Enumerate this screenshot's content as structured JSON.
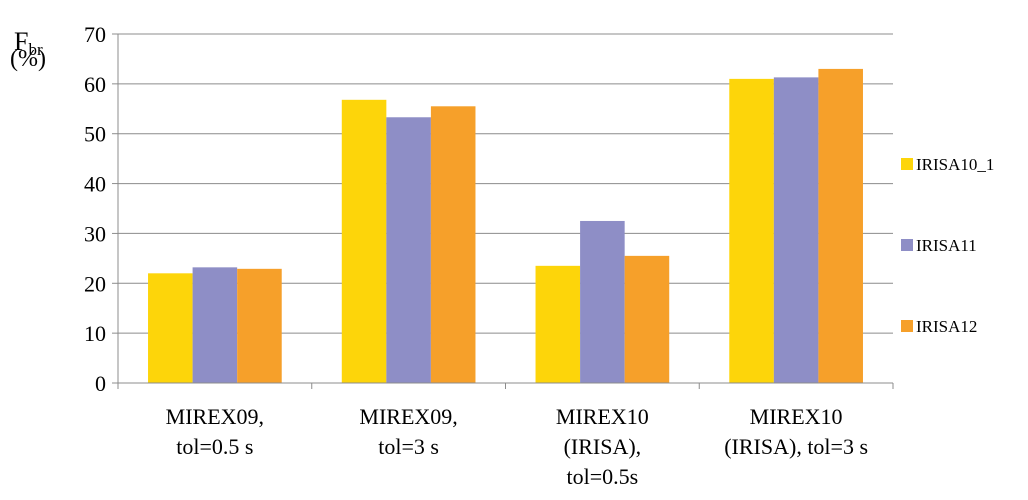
{
  "chart_data": {
    "type": "bar",
    "ylabel": "F",
    "ylabel_subscript": "br",
    "ylabel_unit": "(%)",
    "ylim": [
      0,
      70
    ],
    "yticks": [
      0,
      10,
      20,
      30,
      40,
      50,
      60,
      70
    ],
    "grid": true,
    "legend_position": "right",
    "categories": [
      [
        "MIREX09,",
        "tol=0.5 s"
      ],
      [
        "MIREX09,",
        "tol=3 s"
      ],
      [
        "MIREX10",
        "(IRISA),",
        "tol=0.5s"
      ],
      [
        "MIREX10",
        "(IRISA), tol=3 s"
      ]
    ],
    "series": [
      {
        "name": "IRISA10_1",
        "color": "#FDD50A",
        "values": [
          22.0,
          56.8,
          23.5,
          61.0
        ]
      },
      {
        "name": "IRISA11",
        "color": "#8E8EC6",
        "values": [
          23.2,
          53.3,
          32.5,
          61.3
        ]
      },
      {
        "name": "IRISA12",
        "color": "#F6A02A",
        "values": [
          22.9,
          55.5,
          25.5,
          63.0
        ]
      }
    ]
  }
}
